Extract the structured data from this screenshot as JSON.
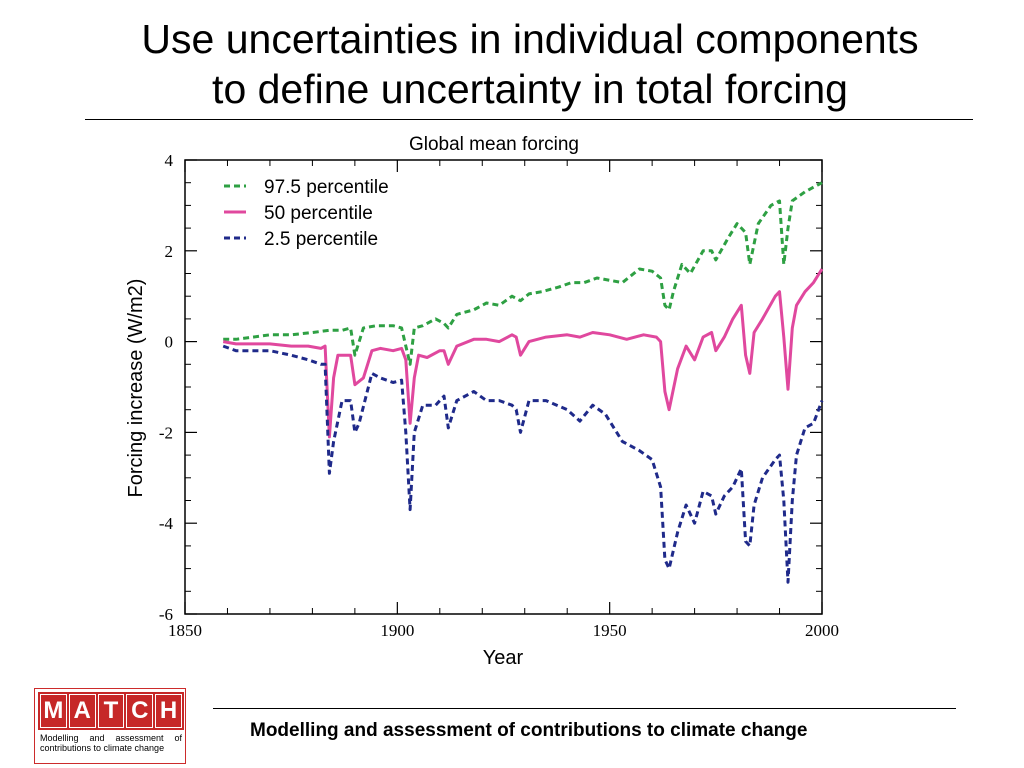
{
  "slide": {
    "title_line1": "Use uncertainties in individual components",
    "title_line2": "to define uncertainty in total forcing"
  },
  "footer": {
    "text": "Modelling and assessment of contributions to climate change",
    "logo_letters": [
      "M",
      "A",
      "T",
      "C",
      "H"
    ],
    "logo_subtitle": "Modelling and assessment of contributions to climate change"
  },
  "colors": {
    "p97": "#2ea043",
    "p50": "#e0489e",
    "p2": "#1f2a8a"
  },
  "chart_data": {
    "type": "line",
    "title": "Global mean forcing",
    "xlabel": "Year",
    "ylabel": "Forcing increase (W/m2)",
    "xlim": [
      1850,
      2000
    ],
    "ylim": [
      -6,
      4
    ],
    "xticks": [
      1850,
      1900,
      1950,
      2000
    ],
    "yticks": [
      4,
      2,
      0,
      -2,
      -4,
      -6
    ],
    "grid": false,
    "legend_position": "top-left",
    "series": [
      {
        "name": "97.5 percentile",
        "style": "dashed",
        "color": "#2ea043",
        "x": [
          1859,
          1862,
          1866,
          1870,
          1875,
          1880,
          1884,
          1887,
          1889,
          1890,
          1892,
          1895,
          1899,
          1901,
          1903,
          1904,
          1906,
          1909,
          1911,
          1912,
          1914,
          1918,
          1921,
          1924,
          1927,
          1929,
          1931,
          1934,
          1938,
          1941,
          1944,
          1947,
          1950,
          1953,
          1957,
          1960,
          1962,
          1963,
          1964,
          1965,
          1967,
          1969,
          1972,
          1974,
          1975,
          1978,
          1980,
          1982,
          1983,
          1985,
          1988,
          1990,
          1991,
          1992,
          1993,
          1996,
          1998,
          2000
        ],
        "y": [
          0.05,
          0.05,
          0.1,
          0.15,
          0.15,
          0.2,
          0.25,
          0.25,
          0.3,
          -0.3,
          0.3,
          0.35,
          0.35,
          0.3,
          -0.5,
          0.3,
          0.35,
          0.5,
          0.4,
          0.3,
          0.6,
          0.7,
          0.85,
          0.8,
          1.0,
          0.9,
          1.05,
          1.1,
          1.2,
          1.3,
          1.3,
          1.4,
          1.35,
          1.3,
          1.6,
          1.55,
          1.4,
          0.8,
          0.7,
          1.1,
          1.7,
          1.5,
          2.0,
          2.0,
          1.8,
          2.3,
          2.6,
          2.4,
          1.7,
          2.6,
          3.0,
          3.1,
          1.7,
          2.5,
          3.1,
          3.3,
          3.4,
          3.5
        ]
      },
      {
        "name": "50 percentile",
        "style": "solid",
        "color": "#e0489e",
        "x": [
          1859,
          1862,
          1866,
          1870,
          1875,
          1879,
          1882,
          1883,
          1884,
          1885,
          1886,
          1888,
          1889,
          1890,
          1892,
          1894,
          1896,
          1899,
          1901,
          1902,
          1903,
          1904,
          1905,
          1907,
          1910,
          1911,
          1912,
          1914,
          1918,
          1921,
          1924,
          1927,
          1928,
          1929,
          1931,
          1935,
          1940,
          1943,
          1946,
          1950,
          1954,
          1958,
          1961,
          1962,
          1963,
          1964,
          1966,
          1968,
          1970,
          1972,
          1974,
          1975,
          1977,
          1979,
          1981,
          1982,
          1983,
          1984,
          1986,
          1989,
          1990,
          1991,
          1992,
          1993,
          1994,
          1996,
          1998,
          2000
        ],
        "y": [
          0.0,
          -0.05,
          -0.05,
          -0.05,
          -0.1,
          -0.1,
          -0.15,
          -0.1,
          -2.1,
          -0.8,
          -0.3,
          -0.3,
          -0.3,
          -0.95,
          -0.8,
          -0.2,
          -0.15,
          -0.2,
          -0.15,
          -0.4,
          -1.8,
          -0.8,
          -0.3,
          -0.35,
          -0.2,
          -0.2,
          -0.5,
          -0.1,
          0.05,
          0.05,
          0.0,
          0.15,
          0.1,
          -0.3,
          0.0,
          0.1,
          0.15,
          0.1,
          0.2,
          0.15,
          0.05,
          0.15,
          0.1,
          0.0,
          -1.1,
          -1.5,
          -0.6,
          -0.1,
          -0.4,
          0.1,
          0.2,
          -0.2,
          0.1,
          0.5,
          0.8,
          -0.3,
          -0.7,
          0.2,
          0.5,
          1.0,
          1.1,
          0.1,
          -1.05,
          0.3,
          0.8,
          1.1,
          1.3,
          1.6
        ]
      },
      {
        "name": "2.5 percentile",
        "style": "dashed",
        "color": "#1f2a8a",
        "x": [
          1859,
          1862,
          1866,
          1870,
          1875,
          1879,
          1882,
          1883,
          1884,
          1885,
          1887,
          1889,
          1890,
          1891,
          1894,
          1896,
          1899,
          1901,
          1902,
          1903,
          1904,
          1906,
          1909,
          1911,
          1912,
          1914,
          1918,
          1921,
          1924,
          1927,
          1928,
          1929,
          1931,
          1935,
          1940,
          1943,
          1946,
          1949,
          1953,
          1957,
          1960,
          1962,
          1963,
          1964,
          1966,
          1968,
          1970,
          1972,
          1974,
          1975,
          1977,
          1979,
          1981,
          1982,
          1983,
          1984,
          1986,
          1989,
          1990,
          1991,
          1992,
          1993,
          1994,
          1996,
          1998,
          2000
        ],
        "y": [
          -0.1,
          -0.2,
          -0.2,
          -0.2,
          -0.3,
          -0.4,
          -0.5,
          -0.5,
          -2.9,
          -2.2,
          -1.3,
          -1.3,
          -2.0,
          -1.8,
          -0.7,
          -0.8,
          -0.9,
          -0.85,
          -2.0,
          -3.7,
          -2.0,
          -1.4,
          -1.4,
          -1.2,
          -1.9,
          -1.3,
          -1.1,
          -1.3,
          -1.3,
          -1.4,
          -1.5,
          -2.0,
          -1.3,
          -1.3,
          -1.5,
          -1.75,
          -1.4,
          -1.6,
          -2.2,
          -2.4,
          -2.6,
          -3.2,
          -4.8,
          -5.0,
          -4.2,
          -3.6,
          -4.0,
          -3.3,
          -3.4,
          -3.8,
          -3.4,
          -3.2,
          -2.8,
          -4.4,
          -4.5,
          -3.6,
          -3.0,
          -2.6,
          -2.5,
          -3.5,
          -5.3,
          -3.5,
          -2.5,
          -1.9,
          -1.8,
          -1.3
        ]
      }
    ]
  }
}
